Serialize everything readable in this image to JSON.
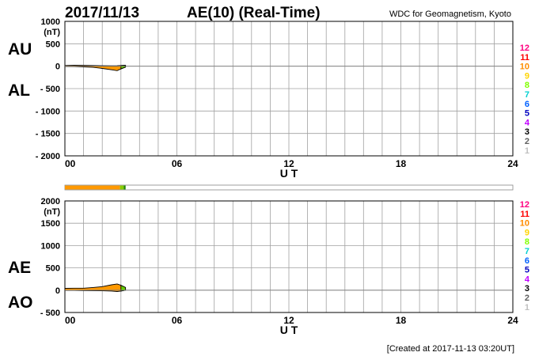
{
  "header": {
    "date": "2017/11/13",
    "title": "AE(10) (Real-Time)",
    "source": "WDC for Geomagnetism, Kyoto"
  },
  "footer": {
    "created": "[Created at 2017-11-13 03:20UT]"
  },
  "level_legend": {
    "labels": [
      "12",
      "11",
      "10",
      "9",
      "8",
      "7",
      "6",
      "5",
      "4",
      "3",
      "2",
      "1"
    ],
    "colors": [
      "#ff0080",
      "#ff0000",
      "#ff8c00",
      "#ffd400",
      "#80ff00",
      "#00d0d0",
      "#0060ff",
      "#0000c0",
      "#c000ff",
      "#000000",
      "#606060",
      "#c0c0c0"
    ]
  },
  "chart_data": [
    {
      "type": "area",
      "name": "AU/AL panel",
      "series_labels": [
        "AU",
        "AL"
      ],
      "unit_label": "(nT)",
      "ylim": [
        -2000,
        1000
      ],
      "y_ticks": [
        1000,
        500,
        0,
        -500,
        -1000,
        -1500,
        -2000
      ],
      "y_tick_labels": [
        "1000",
        "500",
        "0",
        "- 500",
        "- 1000",
        "- 1500",
        "- 2000"
      ],
      "xlim": [
        0,
        24
      ],
      "x_ticks": [
        0,
        6,
        12,
        18,
        24
      ],
      "x_tick_labels": [
        "00",
        "06",
        "12",
        "18",
        "24"
      ],
      "xlabel": "U T",
      "grid": true,
      "x": [
        0.0,
        0.5,
        1.0,
        1.5,
        2.0,
        2.5,
        2.8,
        3.0,
        3.25
      ],
      "upper": [
        15,
        20,
        18,
        15,
        10,
        8,
        10,
        15,
        20
      ],
      "lower": [
        -5,
        -8,
        -15,
        -25,
        -50,
        -80,
        -100,
        -60,
        -20
      ]
    },
    {
      "type": "area",
      "name": "AE/AO panel",
      "series_labels": [
        "AE",
        "AO"
      ],
      "unit_label": "(nT)",
      "ylim": [
        -500,
        2000
      ],
      "y_ticks": [
        2000,
        1500,
        1000,
        500,
        0,
        -500
      ],
      "y_tick_labels": [
        "2000",
        "1500",
        "1000",
        "500",
        "0",
        "- 500"
      ],
      "xlim": [
        0,
        24
      ],
      "x_ticks": [
        0,
        6,
        12,
        18,
        24
      ],
      "x_tick_labels": [
        "00",
        "06",
        "12",
        "18",
        "24"
      ],
      "xlabel": "U T",
      "grid": true,
      "x": [
        0.0,
        0.5,
        1.0,
        1.5,
        2.0,
        2.5,
        2.8,
        3.0,
        3.25
      ],
      "upper": [
        40,
        45,
        45,
        60,
        80,
        120,
        140,
        110,
        60
      ],
      "lower": [
        -5,
        -5,
        -8,
        -10,
        -15,
        -20,
        -30,
        -20,
        0
      ]
    }
  ],
  "activity_bar": {
    "segments": [
      {
        "from": 0,
        "to": 2.95,
        "color": "#ff9900"
      },
      {
        "from": 2.95,
        "to": 3.15,
        "color": "#88cc00"
      },
      {
        "from": 3.15,
        "to": 3.25,
        "color": "#228800"
      }
    ]
  },
  "colors": {
    "fill_main": "#ff9900",
    "fill_recent": "#66cc00",
    "grid": "#a0a0a0"
  }
}
